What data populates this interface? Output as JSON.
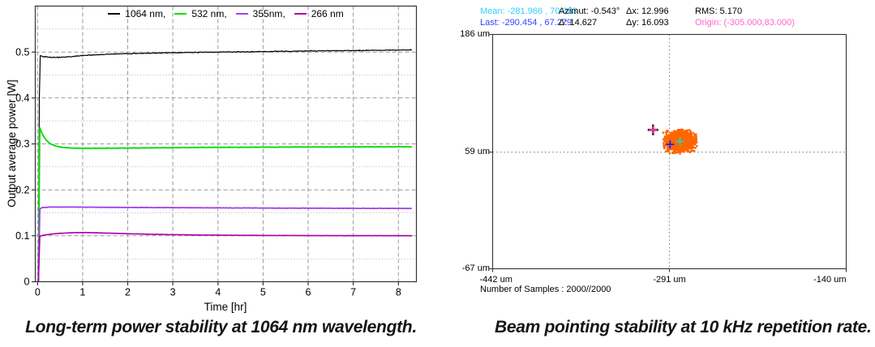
{
  "page": {
    "background": "#ffffff"
  },
  "left_figure": {
    "caption": "Long-term power stability at 1064 nm wavelength.",
    "chart_data": {
      "type": "line",
      "title": "",
      "xlabel": "Time [hr]",
      "ylabel": "Output average power [W]",
      "xlim": [
        0,
        8.35
      ],
      "ylim": [
        0,
        0.6
      ],
      "x_ticks": [
        {
          "v": 0,
          "label": "0"
        },
        {
          "v": 1,
          "label": "1"
        },
        {
          "v": 2,
          "label": "2"
        },
        {
          "v": 3,
          "label": "3"
        },
        {
          "v": 4,
          "label": "4"
        },
        {
          "v": 5,
          "label": "5"
        },
        {
          "v": 6,
          "label": "6"
        },
        {
          "v": 7,
          "label": "7"
        },
        {
          "v": 8,
          "label": "8"
        }
      ],
      "y_ticks": [
        {
          "v": 0,
          "label": "0"
        },
        {
          "v": 0.1,
          "label": "0.1"
        },
        {
          "v": 0.2,
          "label": "0.2"
        },
        {
          "v": 0.3,
          "label": "0.3"
        },
        {
          "v": 0.4,
          "label": "0.4"
        },
        {
          "v": 0.5,
          "label": "0.5"
        }
      ],
      "y_minor_step": 0.05,
      "grid": {
        "major_style": "dashed",
        "minor_style": "dotted",
        "major_color": "#9a9a9a",
        "minor_color": "#c3c3c3"
      },
      "legend_position": "top-center-inside",
      "series": [
        {
          "name": "1064 nm,",
          "wavelength_nm": 1064,
          "color": "#000000",
          "width": 1.2,
          "noise_w": 0.0013,
          "points": [
            [
              0.02,
              0
            ],
            [
              0.04,
              0.4
            ],
            [
              0.06,
              0.4925
            ],
            [
              0.1,
              0.4905
            ],
            [
              0.25,
              0.4885
            ],
            [
              0.5,
              0.4885
            ],
            [
              0.8,
              0.4905
            ],
            [
              1.2,
              0.4935
            ],
            [
              1.6,
              0.4955
            ],
            [
              2.0,
              0.4965
            ],
            [
              2.5,
              0.4975
            ],
            [
              3.0,
              0.4985
            ],
            [
              3.5,
              0.4992
            ],
            [
              4.0,
              0.4998
            ],
            [
              4.5,
              0.5003
            ],
            [
              5.0,
              0.501
            ],
            [
              5.5,
              0.5015
            ],
            [
              6.0,
              0.5022
            ],
            [
              6.5,
              0.5028
            ],
            [
              7.0,
              0.5033
            ],
            [
              7.5,
              0.5038
            ],
            [
              8.3,
              0.5045
            ]
          ]
        },
        {
          "name": "532 nm,",
          "wavelength_nm": 532,
          "color": "#00dd00",
          "width": 1.8,
          "noise_w": 0.0007,
          "points": [
            [
              0.02,
              0
            ],
            [
              0.05,
              0.335
            ],
            [
              0.1,
              0.3225
            ],
            [
              0.18,
              0.3095
            ],
            [
              0.28,
              0.3005
            ],
            [
              0.4,
              0.2955
            ],
            [
              0.55,
              0.2925
            ],
            [
              0.75,
              0.291
            ],
            [
              1.0,
              0.2905
            ],
            [
              1.5,
              0.2905
            ],
            [
              2.0,
              0.291
            ],
            [
              3.0,
              0.2918
            ],
            [
              4.0,
              0.2925
            ],
            [
              5.0,
              0.293
            ],
            [
              6.0,
              0.2933
            ],
            [
              7.0,
              0.2935
            ],
            [
              8.3,
              0.2938
            ]
          ]
        },
        {
          "name": "355nm,",
          "wavelength_nm": 355,
          "color": "#a040f0",
          "width": 1.8,
          "noise_w": 0.0006,
          "points": [
            [
              0.02,
              0
            ],
            [
              0.05,
              0.158
            ],
            [
              0.1,
              0.1615
            ],
            [
              0.3,
              0.1625
            ],
            [
              0.8,
              0.1625
            ],
            [
              1.5,
              0.162
            ],
            [
              2.5,
              0.1615
            ],
            [
              4.0,
              0.1608
            ],
            [
              5.5,
              0.1602
            ],
            [
              7.0,
              0.1598
            ],
            [
              8.3,
              0.1595
            ]
          ]
        },
        {
          "name": "266 nm",
          "wavelength_nm": 266,
          "color": "#aa00aa",
          "width": 1.6,
          "noise_w": 0.0005,
          "points": [
            [
              0.02,
              0
            ],
            [
              0.05,
              0.0995
            ],
            [
              0.2,
              0.1025
            ],
            [
              0.5,
              0.1055
            ],
            [
              0.8,
              0.1068
            ],
            [
              1.1,
              0.107
            ],
            [
              1.5,
              0.106
            ],
            [
              2.0,
              0.1045
            ],
            [
              2.5,
              0.1033
            ],
            [
              3.0,
              0.1025
            ],
            [
              3.5,
              0.1018
            ],
            [
              4.0,
              0.1013
            ],
            [
              5.0,
              0.1008
            ],
            [
              6.0,
              0.1005
            ],
            [
              7.0,
              0.1003
            ],
            [
              8.3,
              0.1003
            ]
          ]
        }
      ]
    }
  },
  "right_figure": {
    "caption": "Beam pointing stability at 10 kHz repetition rate.",
    "header": {
      "cells": [
        {
          "text": "Mean: -281.966 , 70.383",
          "color": "#33ccff",
          "row": 0,
          "col": 0
        },
        {
          "text": "Azimut: -0.543°",
          "color": "#000000",
          "row": 0,
          "col": 1
        },
        {
          "text": "Δx: 12.996",
          "color": "#000000",
          "row": 0,
          "col": 2
        },
        {
          "text": "RMS: 5.170",
          "color": "#000000",
          "row": 0,
          "col": 3
        },
        {
          "text": "Last: -290.454 , 67.279",
          "color": "#3344ff",
          "row": 1,
          "col": 0
        },
        {
          "text": "Δ: 14.627",
          "color": "#000000",
          "row": 1,
          "col": 1
        },
        {
          "text": "Δy: 16.093",
          "color": "#000000",
          "row": 1,
          "col": 2
        },
        {
          "text": "Origin: (-305.000,83.000)",
          "color": "#ff66cc",
          "row": 1,
          "col": 3
        }
      ]
    },
    "samples_label": "Number of Samples : 2000//2000",
    "chart_data": {
      "type": "scatter",
      "unit": "um",
      "xlim": [
        -442,
        -140
      ],
      "ylim": [
        -67,
        186
      ],
      "x_ticks": [
        {
          "v": -442,
          "label": "-442 um"
        },
        {
          "v": -291,
          "label": "-291 um"
        },
        {
          "v": -140,
          "label": "-140 um"
        }
      ],
      "y_ticks": [
        {
          "v": 186,
          "label": "186 um"
        },
        {
          "v": 59,
          "label": "59 um"
        },
        {
          "v": -67,
          "label": "-67 um"
        }
      ],
      "crosshair": {
        "x": -291,
        "y": 59,
        "style": "dotted",
        "color": "#909090"
      },
      "cluster": {
        "center": [
          -281.966,
          70.383
        ],
        "std_um": [
          5.5,
          5.0
        ],
        "n_samples": 2000,
        "color": "#ff6600"
      },
      "markers": [
        {
          "name": "mean",
          "x": -281.966,
          "y": 70.383,
          "color": "#2ed0b8"
        },
        {
          "name": "last",
          "x": -290.454,
          "y": 67.279,
          "color": "#2222ee"
        },
        {
          "name": "origin",
          "x": -305.0,
          "y": 83.0,
          "color": "#ff33aa"
        }
      ]
    }
  }
}
